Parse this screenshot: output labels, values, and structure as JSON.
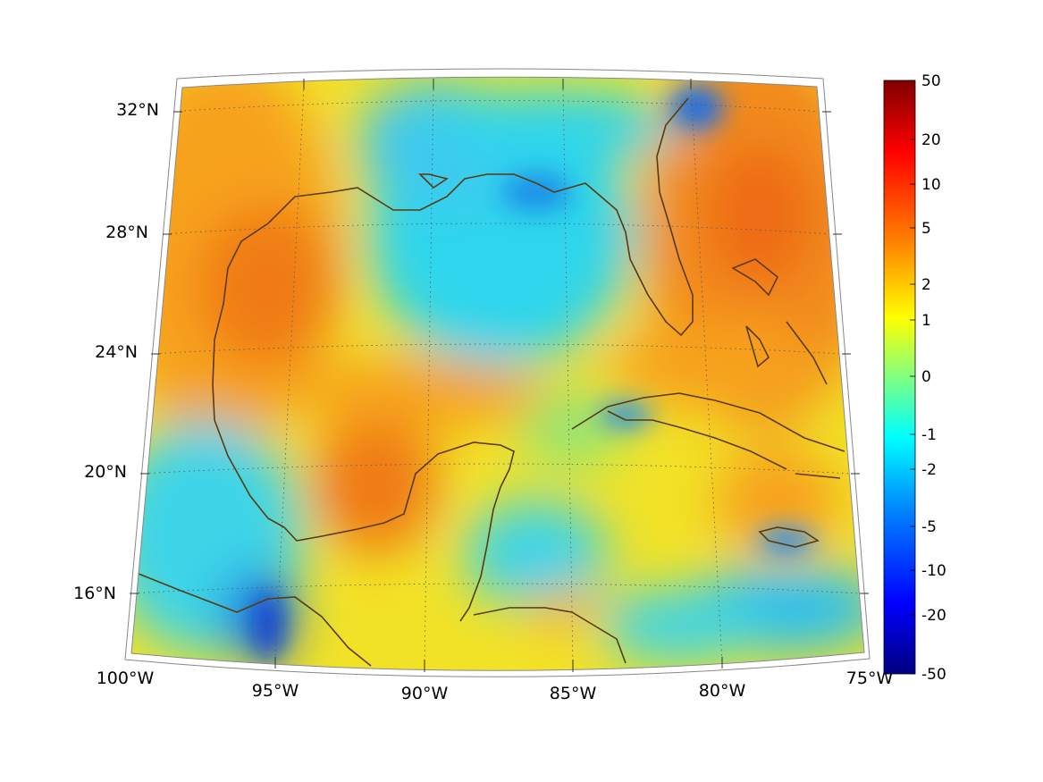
{
  "map": {
    "projection": "conic",
    "region": "Gulf of Mexico and western Caribbean",
    "lon_range": [
      -100,
      -75
    ],
    "lat_range": [
      14,
      33
    ],
    "parallel_labels": [
      "32°N",
      "28°N",
      "24°N",
      "20°N",
      "16°N"
    ],
    "meridian_labels": [
      "100°W",
      "95°W",
      "90°W",
      "85°W",
      "80°W",
      "75°W"
    ],
    "grid": "dotted",
    "coastline_color": "#5a3a10",
    "colormap": "jet"
  },
  "colorbar": {
    "orientation": "vertical",
    "position": "right",
    "ticks": [
      "50",
      "20",
      "10",
      "5",
      "2",
      "1",
      "0",
      "-1",
      "-2",
      "-5",
      "-10",
      "-20",
      "-50"
    ],
    "colors_top_to_bottom": [
      "#800000",
      "#ff0000",
      "#ff8000",
      "#ffff00",
      "#80ff80",
      "#00ffff",
      "#0080ff",
      "#0000ff",
      "#000080"
    ]
  }
}
